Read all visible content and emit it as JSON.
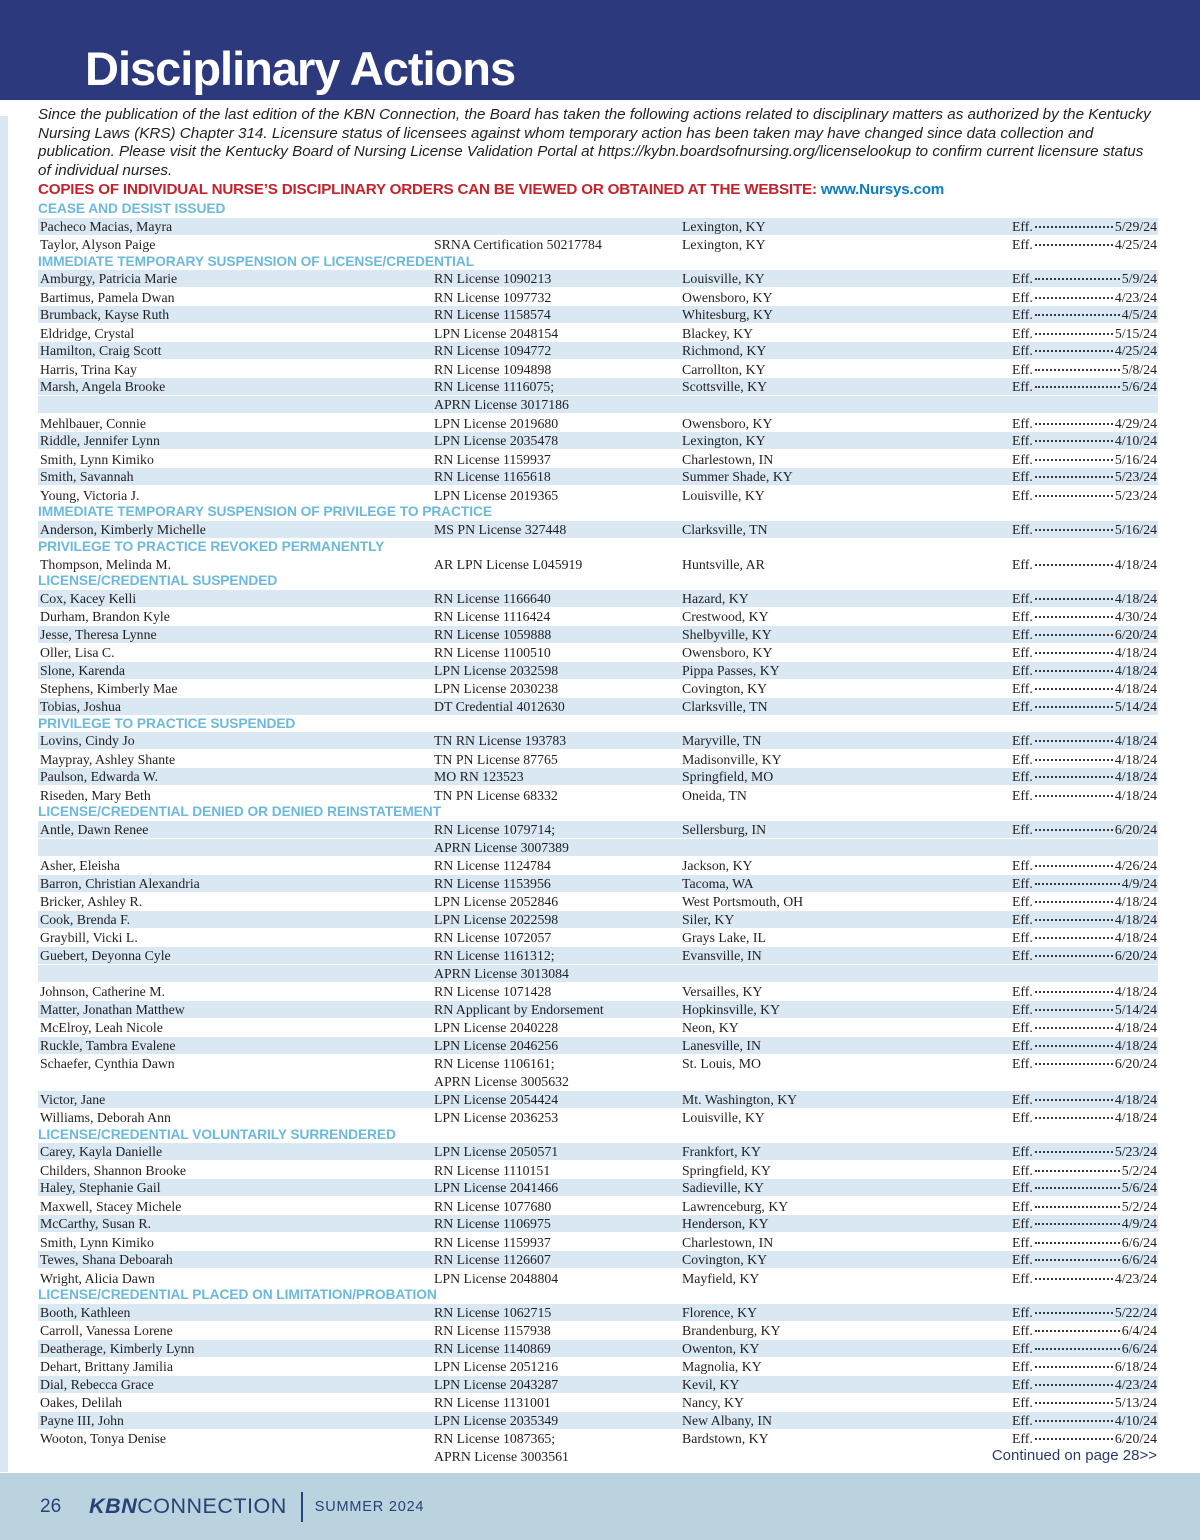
{
  "colors": {
    "navy": "#2c3a7d",
    "stripe": "#d9e8f3",
    "headblue": "#6db9dc",
    "red": "#c4232b",
    "link": "#0e7ec0",
    "footerbg": "#bad3de",
    "footernavy": "#274276",
    "contnavy": "#2b3a6e",
    "text": "#231f20"
  },
  "page": {
    "title": "Disciplinary Actions",
    "intro": "Since the publication of the last edition of the KBN Connection, the Board has taken the following actions related to disciplinary matters as authorized by the Kentucky Nursing Laws (KRS) Chapter 314. Licensure status of licensees against whom temporary action has been taken may have changed since data collection and publication.  Please visit the Kentucky Board of Nursing License Validation Portal at https://kybn.boardsofnursing.org/licenselookup to confirm current licensure status of individual nurses.",
    "notice": "COPIES OF INDIVIDUAL NURSE’S DISCIPLINARY ORDERS CAN BE VIEWED OR OBTAINED AT THE WEBSITE:",
    "notice_link": "www.Nursys.com",
    "continued": "Continued on page 28>>",
    "footer": {
      "page_number": "26",
      "brand_bold": "KBN",
      "brand_rest": "CONNECTION",
      "issue": "SUMMER 2024"
    }
  },
  "table": {
    "eff_label": "Eff.",
    "sections": [
      {
        "heading": "CEASE AND DESIST ISSUED",
        "first_row_shaded": true,
        "rows": [
          {
            "name": "Pacheco Macias, Mayra",
            "license": "",
            "city": "Lexington, KY",
            "effective": "5/29/24"
          },
          {
            "name": "Taylor, Alyson Paige",
            "license": "SRNA Certification 50217784",
            "city": "Lexington, KY",
            "effective": "4/25/24"
          }
        ]
      },
      {
        "heading": "IMMEDIATE TEMPORARY SUSPENSION OF LICENSE/CREDENTIAL",
        "first_row_shaded": true,
        "rows": [
          {
            "name": "Amburgy, Patricia Marie",
            "license": "RN License 1090213",
            "city": "Louisville, KY",
            "effective": "5/9/24"
          },
          {
            "name": "Bartimus, Pamela Dwan",
            "license": "RN License 1097732",
            "city": "Owensboro, KY",
            "effective": "4/23/24"
          },
          {
            "name": "Brumback, Kayse Ruth",
            "license": "RN License 1158574",
            "city": "Whitesburg, KY",
            "effective": "4/5/24"
          },
          {
            "name": "Eldridge, Crystal",
            "license": "LPN License 2048154",
            "city": "Blackey, KY",
            "effective": "5/15/24"
          },
          {
            "name": "Hamilton, Craig Scott",
            "license": "RN License 1094772",
            "city": "Richmond, KY",
            "effective": "4/25/24"
          },
          {
            "name": "Harris, Trina Kay",
            "license": "RN License 1094898",
            "city": "Carrollton, KY",
            "effective": "5/8/24"
          },
          {
            "name": "Marsh, Angela Brooke",
            "license": "RN License 1116075;",
            "license2": "APRN License 3017186",
            "city": "Scottsville, KY",
            "effective": "5/6/24"
          },
          {
            "name": "Mehlbauer, Connie",
            "license": "LPN License 2019680",
            "city": "Owensboro, KY",
            "effective": "4/29/24"
          },
          {
            "name": "Riddle, Jennifer Lynn",
            "license": "LPN License 2035478",
            "city": "Lexington, KY",
            "effective": "4/10/24"
          },
          {
            "name": "Smith, Lynn Kimiko",
            "license": "RN License 1159937",
            "city": "Charlestown, IN",
            "effective": "5/16/24"
          },
          {
            "name": "Smith, Savannah",
            "license": "RN License 1165618",
            "city": "Summer Shade, KY",
            "effective": "5/23/24"
          },
          {
            "name": "Young, Victoria J.",
            "license": "LPN License 2019365",
            "city": "Louisville, KY",
            "effective": "5/23/24"
          }
        ]
      },
      {
        "heading": "IMMEDIATE TEMPORARY SUSPENSION OF PRIVILEGE TO PRACTICE",
        "first_row_shaded": true,
        "rows": [
          {
            "name": "Anderson, Kimberly Michelle",
            "license": "MS PN License 327448",
            "city": "Clarksville, TN",
            "effective": "5/16/24"
          }
        ]
      },
      {
        "heading": "PRIVILEGE TO PRACTICE REVOKED PERMANENTLY",
        "first_row_shaded": false,
        "rows": [
          {
            "name": "Thompson, Melinda M.",
            "license": "AR LPN License L045919",
            "city": "Huntsville, AR",
            "effective": "4/18/24"
          }
        ]
      },
      {
        "heading": "LICENSE/CREDENTIAL SUSPENDED",
        "first_row_shaded": true,
        "rows": [
          {
            "name": "Cox, Kacey Kelli",
            "license": "RN License 1166640",
            "city": "Hazard, KY",
            "effective": "4/18/24"
          },
          {
            "name": "Durham, Brandon Kyle",
            "license": "RN License 1116424",
            "city": "Crestwood, KY",
            "effective": "4/30/24"
          },
          {
            "name": "Jesse, Theresa Lynne",
            "license": "RN License 1059888",
            "city": "Shelbyville, KY",
            "effective": "6/20/24"
          },
          {
            "name": "Oller, Lisa C.",
            "license": "RN License 1100510",
            "city": "Owensboro, KY",
            "effective": "4/18/24"
          },
          {
            "name": "Slone, Karenda",
            "license": "LPN License 2032598",
            "city": "Pippa Passes, KY",
            "effective": "4/18/24"
          },
          {
            "name": "Stephens, Kimberly Mae",
            "license": "LPN License 2030238",
            "city": "Covington, KY",
            "effective": "4/18/24"
          },
          {
            "name": "Tobias, Joshua",
            "license": "DT Credential 4012630",
            "city": "Clarksville, TN",
            "effective": "5/14/24"
          }
        ]
      },
      {
        "heading": "PRIVILEGE TO PRACTICE SUSPENDED",
        "first_row_shaded": true,
        "rows": [
          {
            "name": "Lovins, Cindy Jo",
            "license": "TN RN License 193783",
            "city": "Maryville, TN",
            "effective": "4/18/24"
          },
          {
            "name": "Maypray, Ashley Shante",
            "license": "TN PN License 87765",
            "city": "Madisonville, KY",
            "effective": "4/18/24"
          },
          {
            "name": "Paulson, Edwarda W.",
            "license": "MO RN 123523",
            "city": "Springfield, MO",
            "effective": "4/18/24"
          },
          {
            "name": "Riseden, Mary Beth",
            "license": "TN PN License 68332",
            "city": "Oneida, TN",
            "effective": "4/18/24"
          }
        ]
      },
      {
        "heading": "LICENSE/CREDENTIAL DENIED OR DENIED REINSTATEMENT",
        "first_row_shaded": true,
        "rows": [
          {
            "name": "Antle, Dawn Renee",
            "license": "RN License 1079714;",
            "license2": "APRN License 3007389",
            "city": "Sellersburg, IN",
            "effective": "6/20/24"
          },
          {
            "name": "Asher, Eleisha",
            "license": "RN License 1124784",
            "city": "Jackson, KY",
            "effective": "4/26/24"
          },
          {
            "name": "Barron, Christian Alexandria",
            "license": "RN License 1153956",
            "city": "Tacoma, WA",
            "effective": "4/9/24"
          },
          {
            "name": "Bricker, Ashley R.",
            "license": "LPN License 2052846",
            "city": "West Portsmouth, OH",
            "effective": "4/18/24"
          },
          {
            "name": "Cook, Brenda F.",
            "license": "LPN License 2022598",
            "city": "Siler, KY",
            "effective": "4/18/24"
          },
          {
            "name": "Graybill, Vicki L.",
            "license": "RN License 1072057",
            "city": "Grays Lake, IL",
            "effective": "4/18/24"
          },
          {
            "name": "Guebert, Deyonna Cyle",
            "license": "RN License 1161312;",
            "license2": "APRN License 3013084",
            "city": "Evansville, IN",
            "effective": "6/20/24"
          },
          {
            "name": "Johnson, Catherine M.",
            "license": "RN License 1071428",
            "city": "Versailles, KY",
            "effective": "4/18/24"
          },
          {
            "name": "Matter, Jonathan Matthew",
            "license": "RN Applicant by Endorsement",
            "city": "Hopkinsville, KY",
            "effective": "5/14/24"
          },
          {
            "name": "McElroy, Leah Nicole",
            "license": "LPN License 2040228",
            "city": "Neon, KY",
            "effective": "4/18/24"
          },
          {
            "name": "Ruckle, Tambra Evalene",
            "license": "LPN License 2046256",
            "city": "Lanesville, IN",
            "effective": "4/18/24"
          },
          {
            "name": "Schaefer, Cynthia Dawn",
            "license": "RN License 1106161;",
            "license2": "APRN License 3005632",
            "city": "St. Louis, MO",
            "effective": "6/20/24"
          },
          {
            "name": "Victor, Jane",
            "license": "LPN License 2054424",
            "city": "Mt. Washington, KY",
            "effective": "4/18/24"
          },
          {
            "name": "Williams, Deborah Ann",
            "license": "LPN License 2036253",
            "city": "Louisville, KY",
            "effective": "4/18/24"
          }
        ]
      },
      {
        "heading": "LICENSE/CREDENTIAL VOLUNTARILY SURRENDERED",
        "first_row_shaded": true,
        "rows": [
          {
            "name": "Carey, Kayla Danielle",
            "license": "LPN License 2050571",
            "city": "Frankfort, KY",
            "effective": "5/23/24"
          },
          {
            "name": "Childers, Shannon Brooke",
            "license": "RN License 1110151",
            "city": "Springfield, KY",
            "effective": "5/2/24"
          },
          {
            "name": "Haley, Stephanie Gail",
            "license": "LPN License 2041466",
            "city": "Sadieville, KY",
            "effective": "5/6/24"
          },
          {
            "name": "Maxwell, Stacey Michele",
            "license": "RN License 1077680",
            "city": "Lawrenceburg, KY",
            "effective": "5/2/24"
          },
          {
            "name": "McCarthy, Susan R.",
            "license": "RN License 1106975",
            "city": "Henderson, KY",
            "effective": "4/9/24"
          },
          {
            "name": "Smith, Lynn Kimiko",
            "license": "RN License 1159937",
            "city": "Charlestown, IN",
            "effective": "6/6/24"
          },
          {
            "name": "Tewes, Shana Deboarah",
            "license": "RN License 1126607",
            "city": "Covington, KY",
            "effective": "6/6/24"
          },
          {
            "name": "Wright, Alicia Dawn",
            "license": "LPN License 2048804",
            "city": "Mayfield, KY",
            "effective": "4/23/24"
          }
        ]
      },
      {
        "heading": "LICENSE/CREDENTIAL PLACED ON LIMITATION/PROBATION",
        "first_row_shaded": true,
        "rows": [
          {
            "name": "Booth, Kathleen",
            "license": "RN License 1062715",
            "city": "Florence, KY",
            "effective": "5/22/24"
          },
          {
            "name": "Carroll, Vanessa Lorene",
            "license": "RN License 1157938",
            "city": "Brandenburg, KY",
            "effective": "6/4/24"
          },
          {
            "name": "Deatherage, Kimberly Lynn",
            "license": "RN License 1140869",
            "city": "Owenton, KY",
            "effective": "6/6/24"
          },
          {
            "name": "Dehart, Brittany Jamilia",
            "license": "LPN License 2051216",
            "city": "Magnolia, KY",
            "effective": "6/18/24"
          },
          {
            "name": "Dial, Rebecca Grace",
            "license": "LPN License 2043287",
            "city": "Kevil, KY",
            "effective": "4/23/24"
          },
          {
            "name": "Oakes, Delilah",
            "license": "RN License 1131001",
            "city": "Nancy, KY",
            "effective": "5/13/24"
          },
          {
            "name": "Payne III, John",
            "license": "LPN License 2035349",
            "city": "New Albany, IN",
            "effective": "4/10/24"
          },
          {
            "name": "Wooton, Tonya Denise",
            "license": "RN License 1087365;",
            "license2": "APRN License 3003561",
            "city": "Bardstown, KY",
            "effective": "6/20/24"
          }
        ]
      }
    ]
  }
}
